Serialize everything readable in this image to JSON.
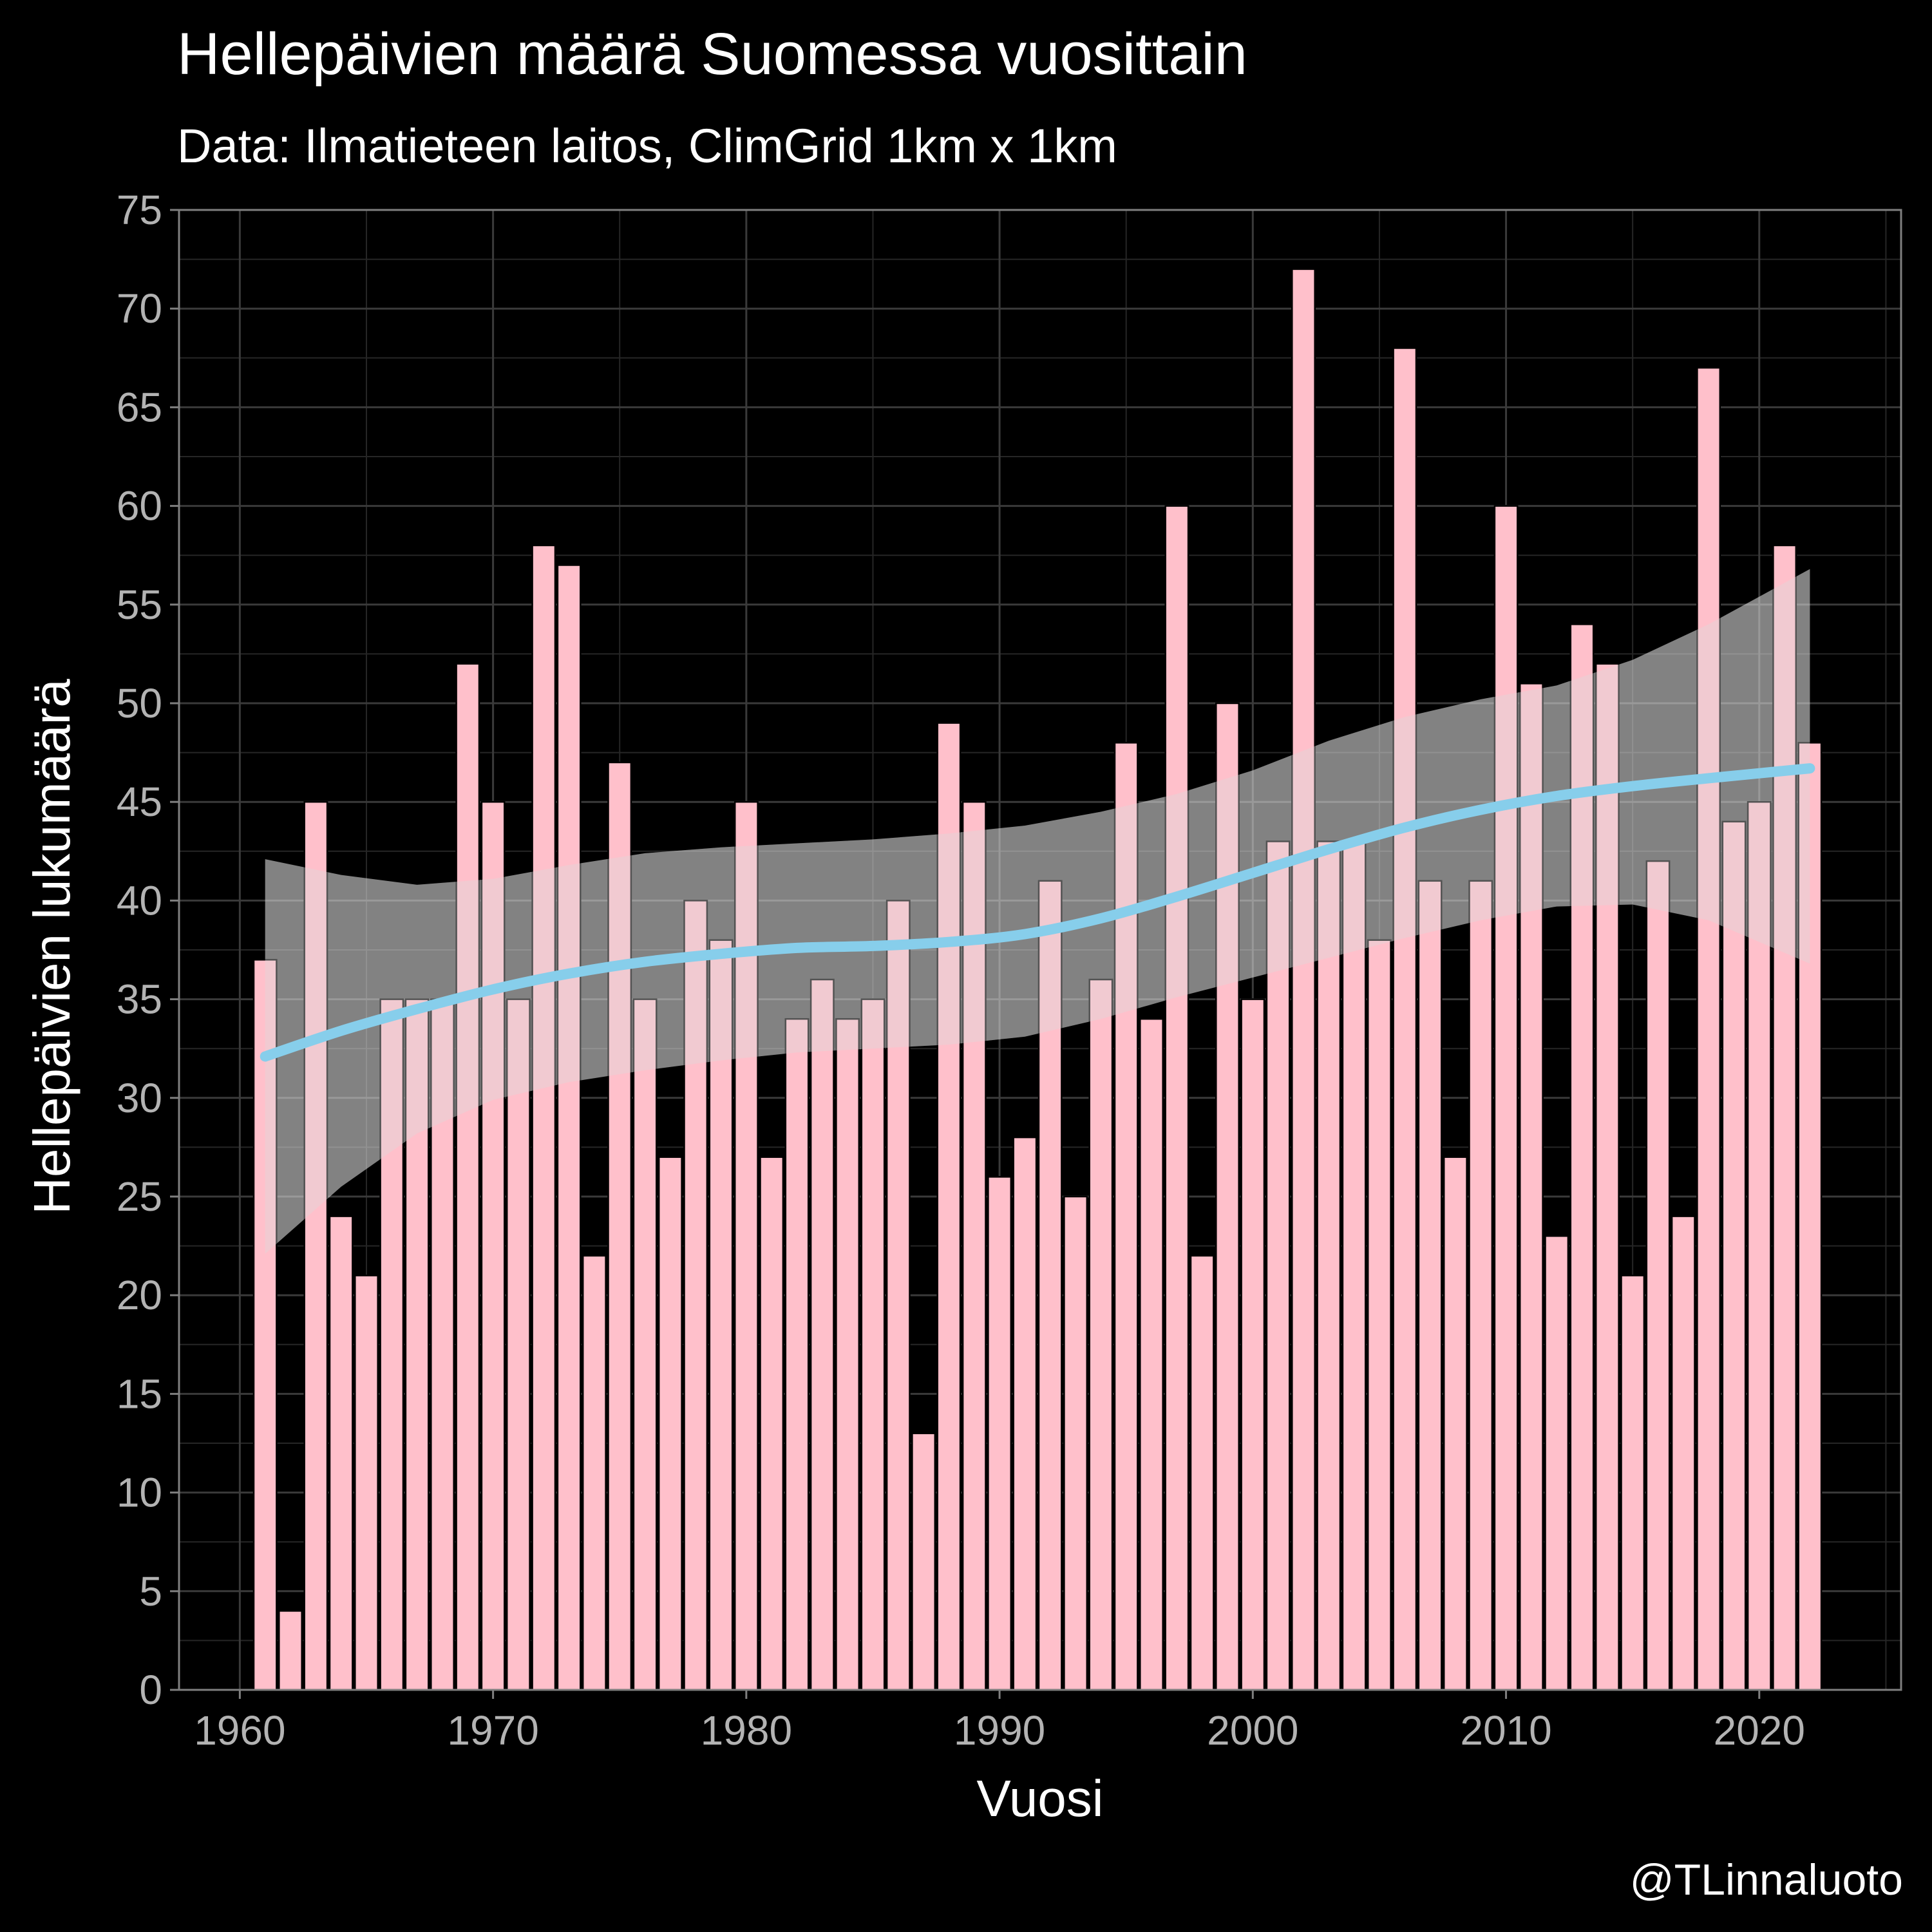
{
  "chart_data": {
    "type": "bar",
    "title": "Hellepäivien määrä Suomessa vuosittain",
    "subtitle": "Data: Ilmatieteen laitos, ClimGrid 1km x 1km",
    "xlabel": "Vuosi",
    "ylabel": "Hellepäivien lukumäärä",
    "caption": "@TLinnaluoto",
    "xlim": [
      1957.6,
      2025.6
    ],
    "ylim": [
      0,
      75
    ],
    "x_ticks": [
      1960,
      1970,
      1980,
      1990,
      2000,
      2010,
      2020
    ],
    "y_ticks": [
      0,
      5,
      10,
      15,
      20,
      25,
      30,
      35,
      40,
      45,
      50,
      55,
      60,
      65,
      70,
      75
    ],
    "grid": true,
    "legend": "none",
    "colors": {
      "background": "#000000",
      "bar_fill": "#FFC0CB",
      "bar_outline": "#000000",
      "trend_line": "#87CEEB",
      "confidence_band": "#d9d9d9",
      "grid": "#3a3a3a",
      "axis_text": "#b3b3b3",
      "title_text": "#ffffff"
    },
    "x": [
      1961,
      1962,
      1963,
      1964,
      1965,
      1966,
      1967,
      1968,
      1969,
      1970,
      1971,
      1972,
      1973,
      1974,
      1975,
      1976,
      1977,
      1978,
      1979,
      1980,
      1981,
      1982,
      1983,
      1984,
      1985,
      1986,
      1987,
      1988,
      1989,
      1990,
      1991,
      1992,
      1993,
      1994,
      1995,
      1996,
      1997,
      1998,
      1999,
      2000,
      2001,
      2002,
      2003,
      2004,
      2005,
      2006,
      2007,
      2008,
      2009,
      2010,
      2011,
      2012,
      2013,
      2014,
      2015,
      2016,
      2017,
      2018,
      2019,
      2020,
      2021,
      2022
    ],
    "values": [
      37,
      4,
      45,
      24,
      21,
      35,
      35,
      35,
      52,
      45,
      35,
      58,
      57,
      22,
      47,
      35,
      27,
      40,
      38,
      45,
      27,
      34,
      36,
      34,
      35,
      40,
      13,
      49,
      45,
      26,
      28,
      41,
      25,
      36,
      48,
      34,
      60,
      22,
      50,
      35,
      43,
      72,
      43,
      43,
      38,
      68,
      41,
      27,
      41,
      60,
      51,
      23,
      54,
      52,
      21,
      42,
      24,
      67,
      44,
      45,
      58,
      48
    ],
    "trend": {
      "x": [
        1961,
        1964,
        1967,
        1970,
        1973,
        1976,
        1979,
        1982,
        1985,
        1988,
        1991,
        1994,
        1997,
        2000,
        2003,
        2006,
        2009,
        2012,
        2015,
        2018,
        2022
      ],
      "y": [
        32.1,
        33.4,
        34.5,
        35.5,
        36.3,
        36.9,
        37.3,
        37.6,
        37.7,
        37.9,
        38.3,
        39.1,
        40.2,
        41.4,
        42.6,
        43.7,
        44.6,
        45.3,
        45.8,
        46.2,
        46.7
      ],
      "lower": [
        22.1,
        25.5,
        28.2,
        29.9,
        30.8,
        31.4,
        31.9,
        32.3,
        32.5,
        32.7,
        33.1,
        34,
        35.1,
        36.1,
        37.1,
        38.1,
        39,
        39.7,
        39.8,
        39,
        36.8
      ],
      "upper": [
        42.1,
        41.3,
        40.8,
        41.1,
        41.8,
        42.4,
        42.7,
        42.9,
        43.1,
        43.4,
        43.8,
        44.5,
        45.4,
        46.6,
        48.1,
        49.3,
        50.2,
        50.9,
        52.2,
        54,
        56.8
      ]
    }
  }
}
